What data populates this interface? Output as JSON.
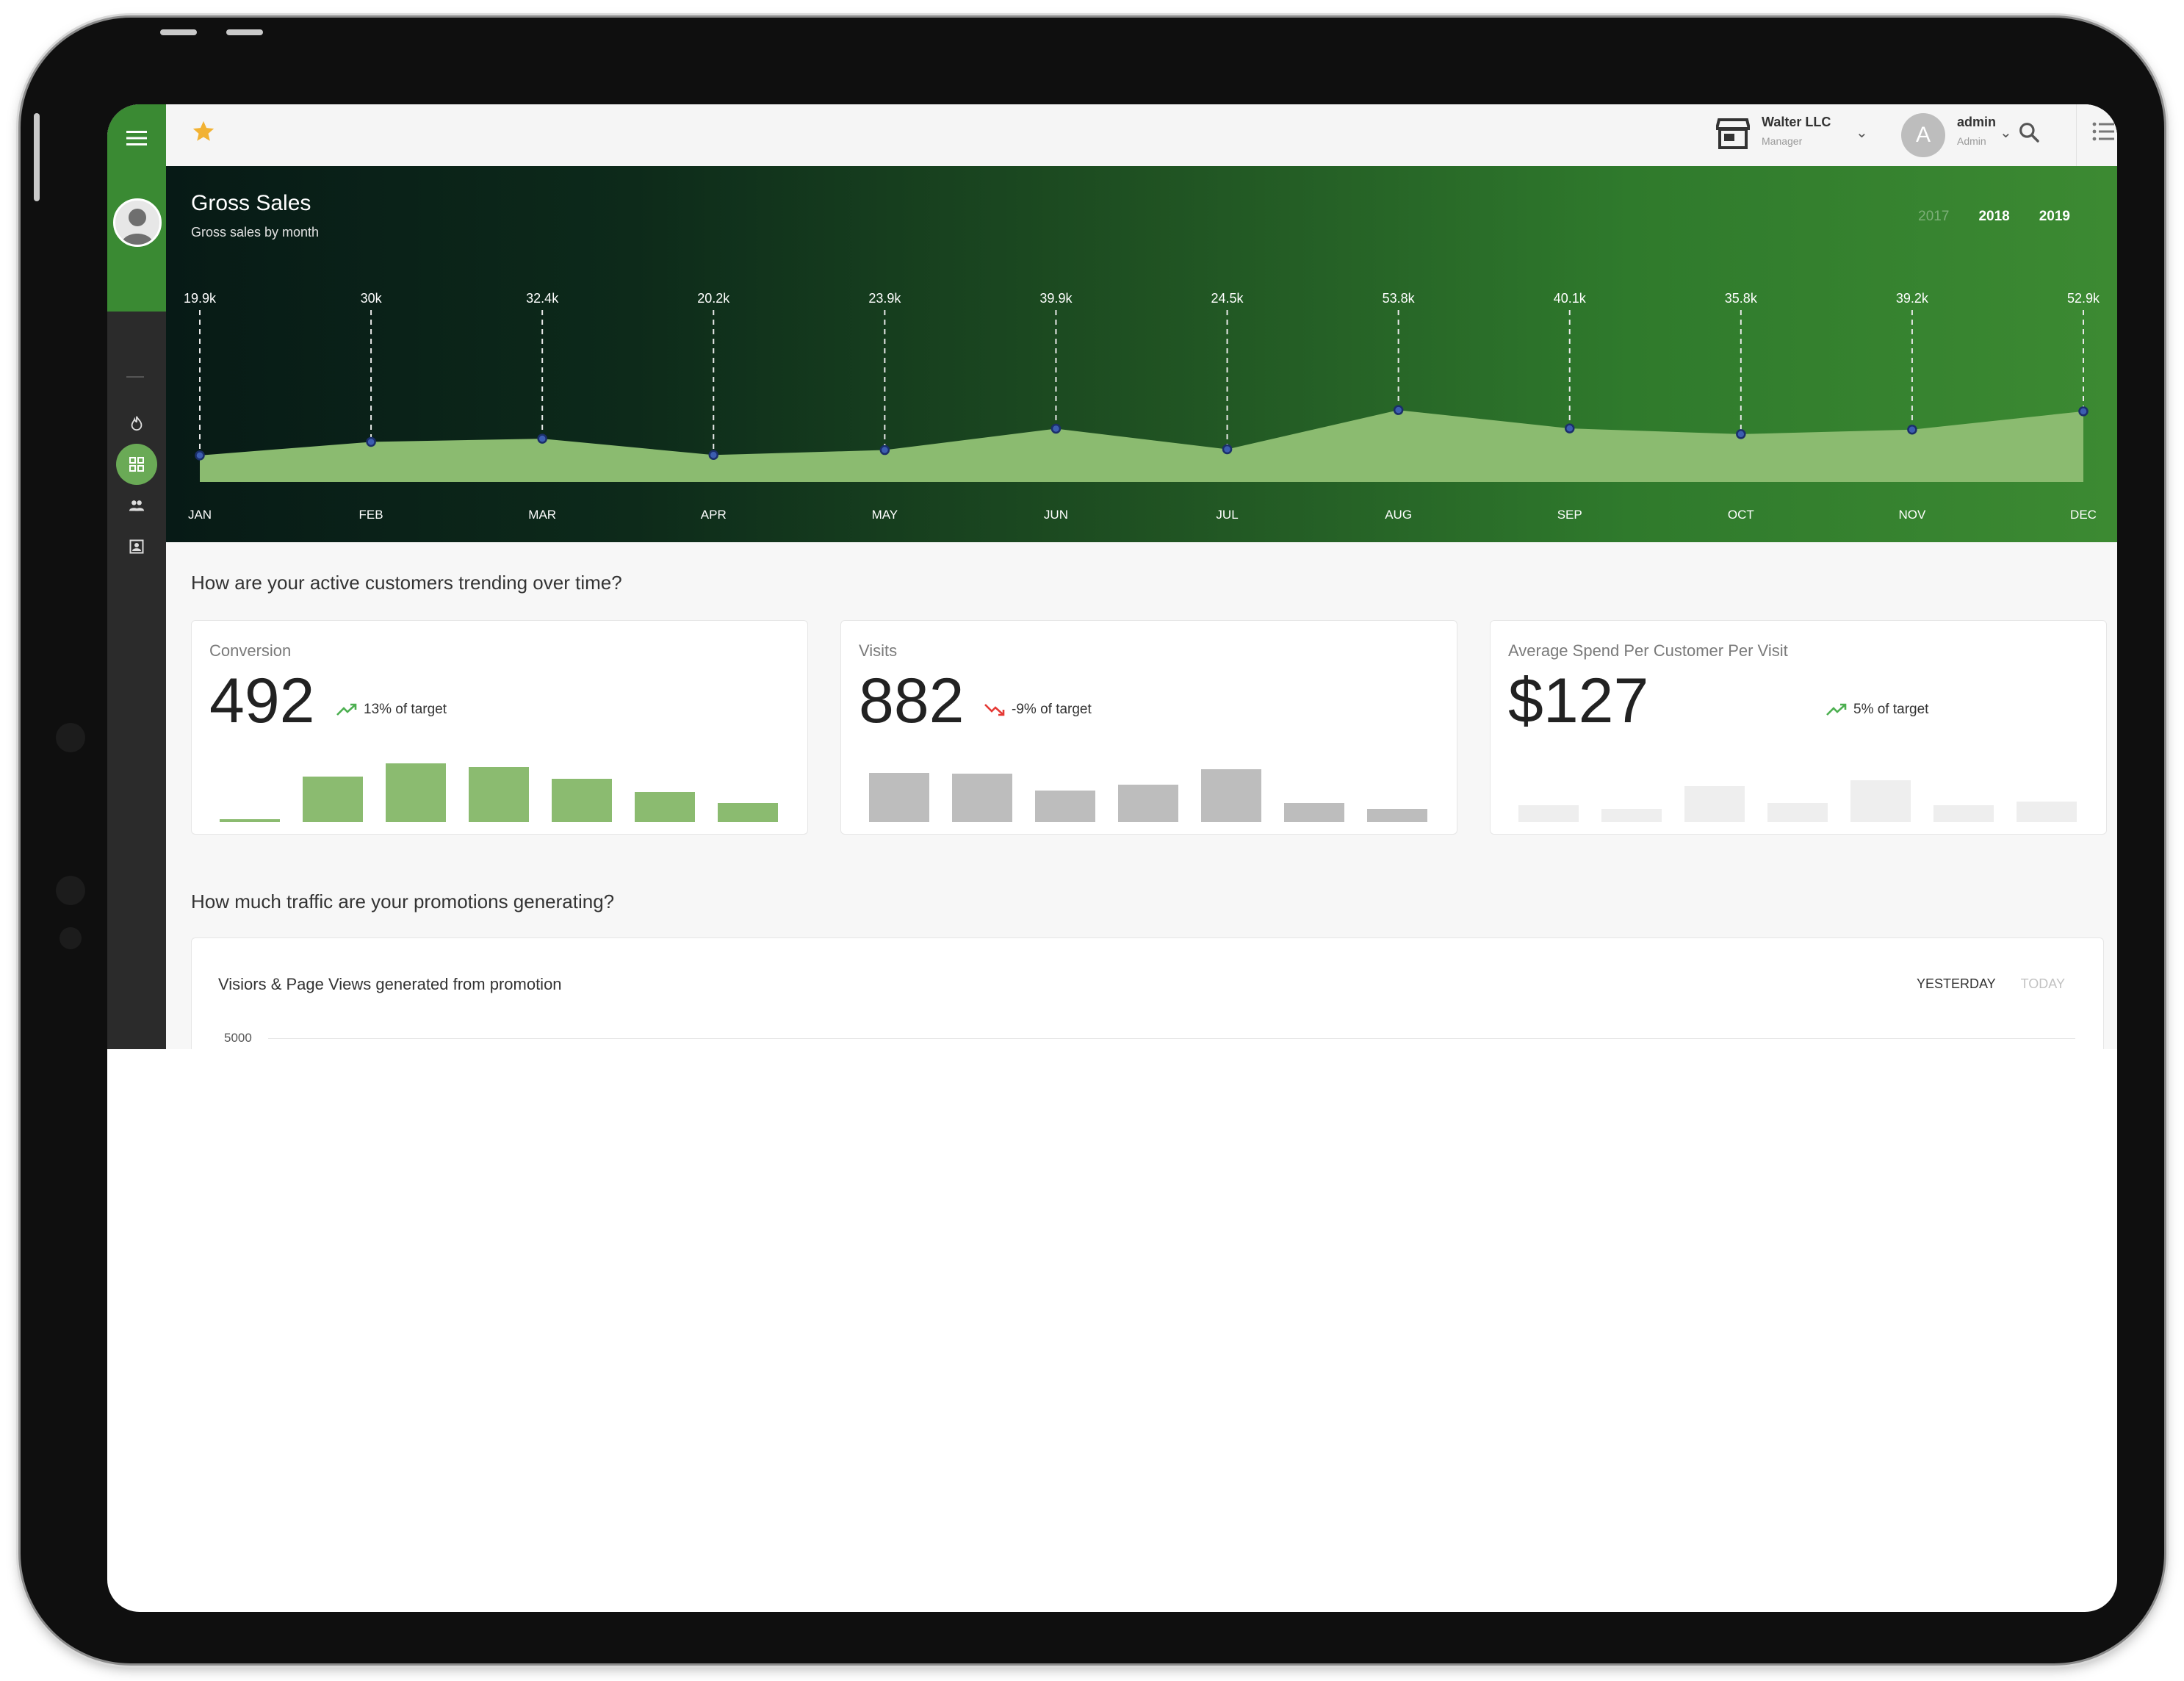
{
  "topbar": {
    "org_name": "Walter LLC",
    "org_role": "Manager",
    "user_initial": "A",
    "user_name": "admin",
    "user_role": "Admin",
    "icons": [
      "menu-icon",
      "star-icon",
      "store-icon",
      "chevron-down-icon",
      "search-icon",
      "list-icon"
    ]
  },
  "sidebar": {
    "items": [
      {
        "icon": "flame-icon",
        "active": false
      },
      {
        "icon": "dashboard-icon",
        "active": true
      },
      {
        "icon": "people-icon",
        "active": false
      },
      {
        "icon": "contact-card-icon",
        "active": false
      }
    ]
  },
  "gross_sales": {
    "title": "Gross Sales",
    "subtitle": "Gross sales by month",
    "years": [
      {
        "label": "2017",
        "selected": false
      },
      {
        "label": "2018",
        "selected": true
      },
      {
        "label": "2019",
        "selected": true
      }
    ]
  },
  "chart_data": {
    "type": "area",
    "title": "Gross Sales",
    "subtitle": "Gross sales by month",
    "categories": [
      "JAN",
      "FEB",
      "MAR",
      "APR",
      "MAY",
      "JUN",
      "JUL",
      "AUG",
      "SEP",
      "OCT",
      "NOV",
      "DEC"
    ],
    "values": [
      19.9,
      30,
      32.4,
      20.2,
      23.9,
      39.9,
      24.5,
      53.8,
      40.1,
      35.8,
      39.2,
      52.9
    ],
    "value_labels": [
      "19.9k",
      "30k",
      "32.4k",
      "20.2k",
      "23.9k",
      "39.9k",
      "24.5k",
      "53.8k",
      "40.1k",
      "35.8k",
      "39.2k",
      "52.9k"
    ],
    "unit": "k",
    "grid": false,
    "colors": {
      "fill": "#8bbb70",
      "point": "#1b2f6a",
      "guide": "#e8e8e8"
    }
  },
  "customers": {
    "question": "How are your active customers trending over time?",
    "cards": [
      {
        "label": "Conversion",
        "value": "492",
        "trend": "13% of target",
        "direction": "up",
        "bar_color": "#8bbb70",
        "bars": [
          4,
          76,
          98,
          92,
          72,
          50,
          32
        ]
      },
      {
        "label": "Visits",
        "value": "882",
        "trend": "-9% of target",
        "direction": "down",
        "bar_color": "#bdbdbd",
        "bars": [
          82,
          80,
          52,
          62,
          88,
          32,
          22
        ]
      },
      {
        "label": "Average Spend Per Customer Per Visit",
        "value": "$127",
        "trend": "5% of target",
        "direction": "up",
        "bar_color": "#eeeeee",
        "bars": [
          28,
          22,
          60,
          32,
          70,
          28,
          34
        ]
      }
    ],
    "colors": {
      "up": "#4caf50",
      "down": "#e53935"
    }
  },
  "promotions": {
    "question": "How much traffic are your promotions generating?",
    "card_title": "Visiors & Page Views generated from promotion",
    "tabs": [
      {
        "label": "YESTERDAY",
        "active": true
      },
      {
        "label": "TODAY",
        "active": false
      }
    ],
    "y_axis_top": "5000"
  }
}
